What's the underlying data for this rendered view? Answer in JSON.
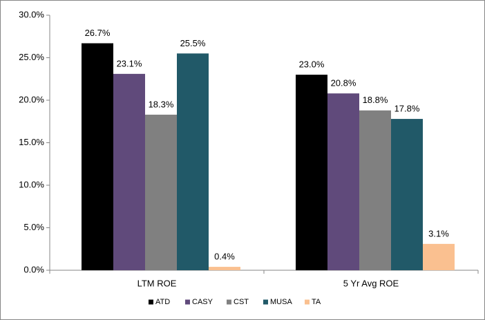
{
  "chart_data": {
    "type": "bar",
    "categories": [
      "LTM ROE",
      "5 Yr Avg ROE"
    ],
    "series": [
      {
        "name": "ATD",
        "color": "#000000",
        "values": [
          26.7,
          23.0
        ],
        "value_labels": [
          "26.7%",
          "23.0%"
        ]
      },
      {
        "name": "CASY",
        "color": "#604a7b",
        "values": [
          23.1,
          20.8
        ],
        "value_labels": [
          "23.1%",
          "20.8%"
        ]
      },
      {
        "name": "CST",
        "color": "#808080",
        "values": [
          18.3,
          18.8
        ],
        "value_labels": [
          "18.3%",
          "18.8%"
        ]
      },
      {
        "name": "MUSA",
        "color": "#215968",
        "values": [
          25.5,
          17.8
        ],
        "value_labels": [
          "25.5%",
          "17.8%"
        ]
      },
      {
        "name": "TA",
        "color": "#fac090",
        "values": [
          0.4,
          3.1
        ],
        "value_labels": [
          "0.4%",
          "3.1%"
        ]
      }
    ],
    "ylim": [
      0,
      30
    ],
    "yticks": [
      {
        "value": 0,
        "label": "0.0%"
      },
      {
        "value": 5,
        "label": "5.0%"
      },
      {
        "value": 10,
        "label": "10.0%"
      },
      {
        "value": 15,
        "label": "15.0%"
      },
      {
        "value": 20,
        "label": "20.0%"
      },
      {
        "value": 25,
        "label": "25.0%"
      },
      {
        "value": 30,
        "label": "30.0%"
      }
    ],
    "grid": false,
    "legend": "bottom"
  }
}
